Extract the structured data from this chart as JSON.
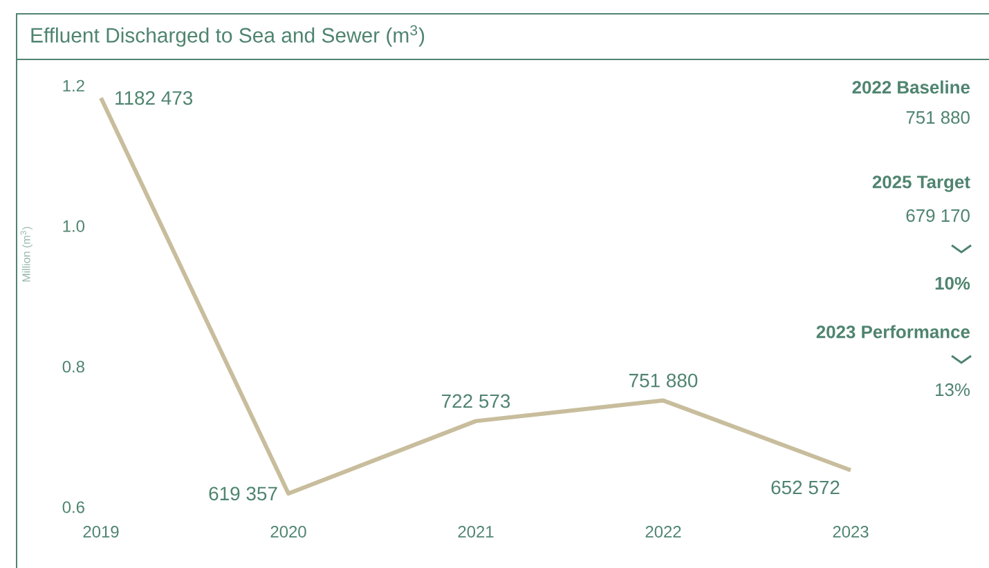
{
  "chart_data": {
    "type": "line",
    "title": "Effluent Discharged to Sea and Sewer (m$^{3}$)",
    "ylabel": "Million (m$^{3}$)",
    "categories": [
      "2019",
      "2020",
      "2021",
      "2022",
      "2023"
    ],
    "values": [
      1.182473,
      0.619357,
      0.722573,
      0.75188,
      0.652572
    ],
    "color": "#c8bd9c",
    "ylim": [
      0.6,
      1.2
    ],
    "yticks": [
      0.6,
      0.8,
      {
        "value": 1,
        "label": "1.0"
      },
      1.2
    ],
    "annotations": [
      "1182 473",
      "619 357",
      "722 573",
      "751 880",
      "652 572",
      "2022 Baseline",
      "751 880",
      "2025 Target",
      "679 170",
      "10%",
      "2023 Performance",
      "13%"
    ]
  }
}
